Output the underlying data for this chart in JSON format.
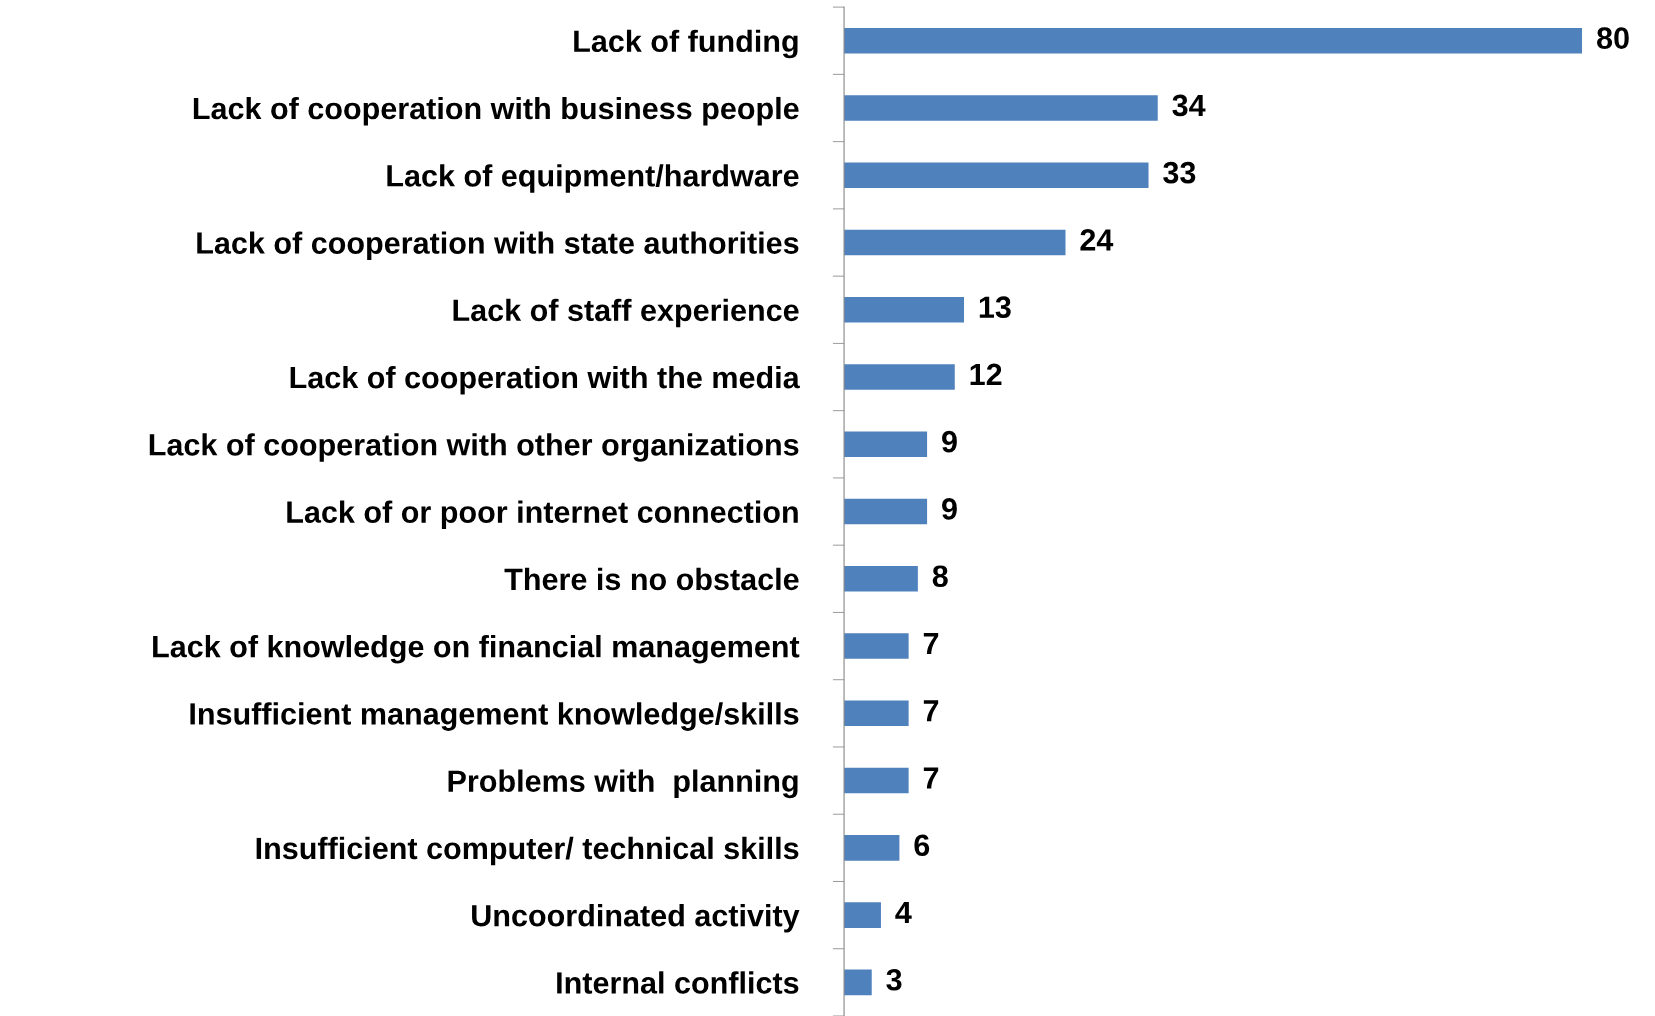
{
  "chart_data": {
    "type": "bar",
    "orientation": "horizontal",
    "categories": [
      "Lack of funding",
      "Lack of cooperation with business people",
      "Lack of equipment/hardware",
      "Lack of cooperation with state authorities",
      "Lack of staff experience",
      "Lack of cooperation with the media",
      "Lack of cooperation with other organizations",
      "Lack of or poor internet connection",
      "There is no obstacle",
      "Lack of knowledge on financial management",
      "Insufficient management knowledge/skills",
      "Problems with  planning",
      "Insufficient computer/ technical skills",
      "Uncoordinated activity",
      "Internal conflicts"
    ],
    "values": [
      80,
      34,
      33,
      24,
      13,
      12,
      9,
      9,
      8,
      7,
      7,
      7,
      6,
      4,
      3
    ],
    "color": "#4f81bd",
    "data_labels": true,
    "grid": false,
    "legend": false
  }
}
